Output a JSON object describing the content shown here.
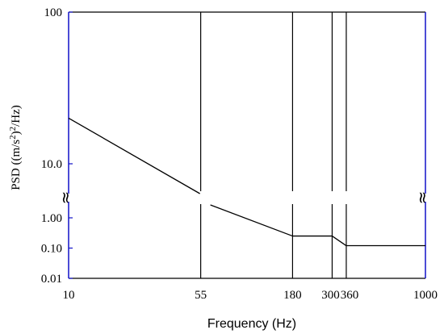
{
  "chart_data": {
    "type": "line",
    "title": "",
    "xlabel": "Frequency (Hz)",
    "ylabel": {
      "p1": "PSD ((m/s",
      "sup1": "2",
      "p2": ")",
      "sup2": "2",
      "p3": "/Hz)"
    },
    "x_axis": {
      "ticks": [
        {
          "value": 10,
          "label": "10"
        },
        {
          "value": 55,
          "label": "55"
        },
        {
          "value": 180,
          "label": "180"
        },
        {
          "value": 300,
          "label": "300"
        },
        {
          "value": 360,
          "label": "360"
        },
        {
          "value": 1000,
          "label": "1000"
        }
      ],
      "range": [
        10,
        1000
      ]
    },
    "y_axis": {
      "segmented": true,
      "break_marker": "≈",
      "upper_ticks": [
        {
          "value": 10,
          "label": "10.0"
        },
        {
          "value": 100,
          "label": "100"
        }
      ],
      "lower_ticks": [
        {
          "value": 0.01,
          "label": "0.01"
        },
        {
          "value": 0.1,
          "label": "0.10"
        },
        {
          "value": 1.0,
          "label": "1.00"
        }
      ]
    },
    "vertical_lines": [
      55,
      180,
      300,
      360
    ],
    "series": [
      {
        "x": [
          10,
          55,
          180,
          300,
          360,
          1000
        ],
        "y": [
          20,
          3.5,
          0.25,
          0.25,
          0.12,
          0.12
        ]
      }
    ],
    "colors": {
      "axis": "#1010c8",
      "line": "#000000",
      "frame": "#000000"
    }
  }
}
